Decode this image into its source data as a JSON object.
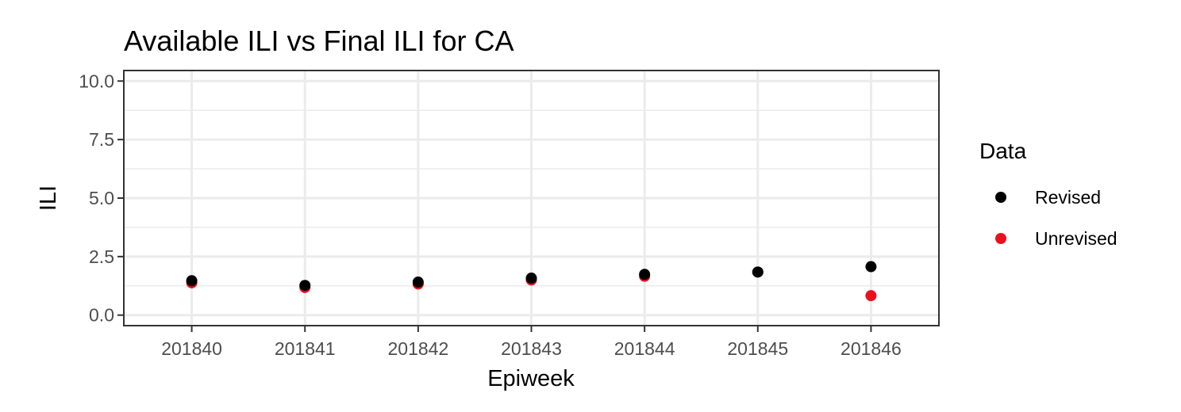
{
  "chart_data": {
    "type": "scatter",
    "title": "Available ILI vs Final ILI for CA",
    "xlabel": "Epiweek",
    "ylabel": "ILI",
    "categories": [
      "201840",
      "201841",
      "201842",
      "201843",
      "201844",
      "201845",
      "201846"
    ],
    "y_ticks": [
      "0.0",
      "2.5",
      "5.0",
      "7.5",
      "10.0"
    ],
    "ylim": [
      -0.45,
      10.45
    ],
    "grid": true,
    "legend_title": "Data",
    "legend_position": "right",
    "series": [
      {
        "name": "Unrevised",
        "color": "#e8121e",
        "values": [
          1.38,
          1.18,
          1.33,
          1.5,
          1.66,
          1.84,
          0.83
        ]
      },
      {
        "name": "Revised",
        "color": "#000000",
        "values": [
          1.47,
          1.27,
          1.41,
          1.58,
          1.74,
          1.84,
          2.07
        ]
      }
    ]
  }
}
